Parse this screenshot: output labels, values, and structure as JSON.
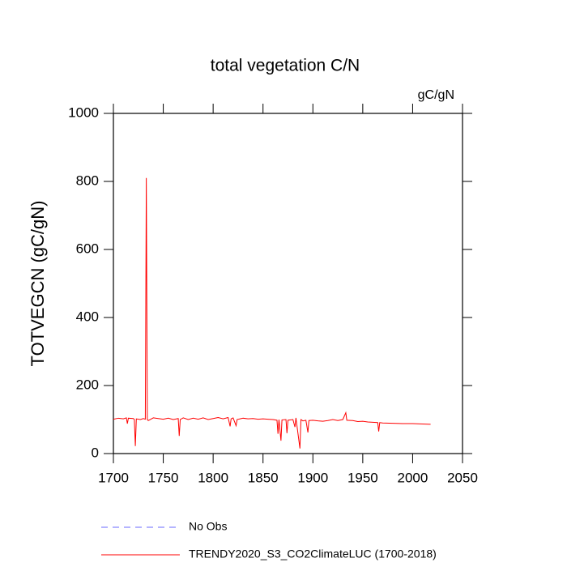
{
  "chart_data": {
    "type": "line",
    "title": "total vegetation C/N",
    "units": "gC/gN",
    "y_label": "TOTVEGCN  (gC/gN)",
    "x": [
      1700,
      1705,
      1710,
      1713,
      1714,
      1715,
      1720,
      1721,
      1722,
      1723,
      1727,
      1730,
      1732,
      1733,
      1734,
      1735,
      1740,
      1745,
      1750,
      1755,
      1760,
      1765,
      1766,
      1767,
      1770,
      1775,
      1780,
      1785,
      1790,
      1795,
      1800,
      1805,
      1810,
      1815,
      1817,
      1818,
      1820,
      1823,
      1824,
      1830,
      1835,
      1840,
      1845,
      1850,
      1855,
      1860,
      1864,
      1865,
      1866,
      1868,
      1869,
      1873,
      1874,
      1875,
      1880,
      1882,
      1883,
      1887,
      1888,
      1890,
      1893,
      1895,
      1896,
      1900,
      1905,
      1910,
      1915,
      1920,
      1925,
      1930,
      1933,
      1934,
      1940,
      1945,
      1950,
      1955,
      1960,
      1965,
      1966,
      1967,
      1970,
      1980,
      1990,
      2000,
      2010,
      2018
    ],
    "series": [
      {
        "name": "No Obs",
        "color": "#6a6aff",
        "dash": "dashed",
        "values": [
          null,
          null,
          null,
          null,
          null,
          null,
          null,
          null,
          null,
          null,
          null,
          null,
          null,
          null,
          null,
          null,
          null,
          null,
          null,
          null,
          null,
          null,
          null,
          null,
          null,
          null,
          null,
          null,
          null,
          null,
          null,
          null,
          null,
          null,
          null,
          null,
          null,
          null,
          null,
          null,
          null,
          null,
          null,
          null,
          null,
          null,
          null,
          null,
          null,
          null,
          null,
          null,
          null,
          null,
          null,
          null,
          null,
          null,
          null,
          null,
          null,
          null,
          null,
          null,
          null,
          null,
          null,
          null,
          null,
          null,
          null,
          null,
          null,
          null,
          null,
          null,
          null,
          null,
          null,
          null,
          null,
          null,
          null,
          null,
          null,
          null
        ]
      },
      {
        "name": "TRENDY2020_S3_CO2ClimateLUC (1700-2018)",
        "color": "#ff0000",
        "dash": "solid",
        "values": [
          101,
          104,
          102,
          105,
          88,
          104,
          103,
          100,
          22,
          102,
          100,
          103,
          101,
          810,
          100,
          97,
          105,
          103,
          101,
          104,
          100,
          103,
          52,
          100,
          105,
          100,
          104,
          101,
          105,
          100,
          103,
          106,
          102,
          106,
          80,
          102,
          105,
          82,
          100,
          104,
          102,
          103,
          101,
          102,
          101,
          100,
          98,
          58,
          100,
          38,
          99,
          100,
          60,
          98,
          100,
          78,
          105,
          15,
          100,
          96,
          98,
          62,
          97,
          98,
          96,
          95,
          97,
          100,
          97,
          100,
          120,
          98,
          97,
          94,
          95,
          93,
          92,
          91,
          65,
          91,
          90,
          89,
          88,
          88,
          87,
          86
        ]
      }
    ],
    "xlim": [
      1700,
      2050
    ],
    "xticks": [
      1700,
      1750,
      1800,
      1850,
      1900,
      1950,
      2000,
      2050
    ],
    "ylim": [
      0,
      1000
    ],
    "yticks": [
      0,
      200,
      400,
      600,
      800,
      1000
    ]
  }
}
